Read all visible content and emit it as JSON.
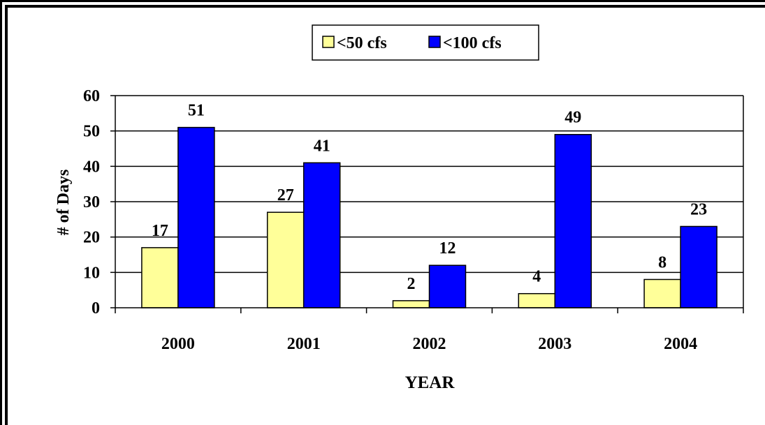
{
  "chart_data": {
    "type": "bar",
    "categories": [
      "2000",
      "2001",
      "2002",
      "2003",
      "2004"
    ],
    "series": [
      {
        "name": "<50 cfs",
        "values": [
          17,
          27,
          2,
          4,
          8
        ],
        "color": "#ffff99"
      },
      {
        "name": "<100 cfs",
        "values": [
          51,
          41,
          12,
          49,
          23
        ],
        "color": "#0000ff"
      }
    ],
    "xlabel": "YEAR",
    "ylabel": "# of Days",
    "ylim": [
      0,
      60
    ],
    "yticks": [
      0,
      10,
      20,
      30,
      40,
      50,
      60
    ],
    "grid": true,
    "legend_position": "top-center"
  }
}
